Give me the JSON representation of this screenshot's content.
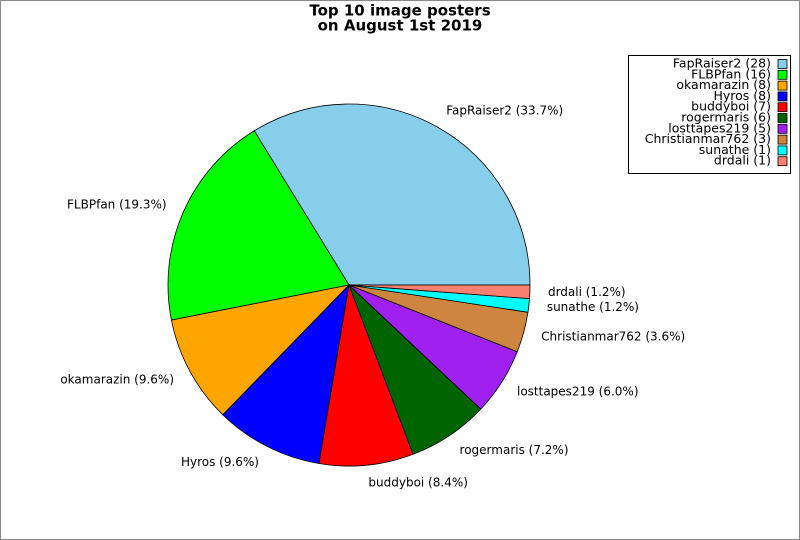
{
  "chart_data": {
    "type": "pie",
    "title": [
      "Top 10 image posters",
      "on August 1st 2019"
    ],
    "categories": [
      "FapRaiser2",
      "FLBPfan",
      "okamarazin",
      "Hyros",
      "buddyboi",
      "rogermaris",
      "losttapes219",
      "Christianmar762",
      "sunathe",
      "drdali"
    ],
    "values": [
      33.7,
      19.3,
      9.6,
      9.6,
      8.4,
      7.2,
      6.0,
      3.6,
      1.2,
      1.2
    ],
    "value_labels": [
      "FapRaiser2 (33.7%)",
      "FLBPfan (19.3%)",
      "okamarazin (9.6%)",
      "Hyros (9.6%)",
      "buddyboi (8.4%)",
      "rogermaris (7.2%)",
      "losttapes219 (6.0%)",
      "Christianmar762 (3.6%)",
      "sunathe (1.2%)",
      "drdali (1.2%)"
    ],
    "legend_labels": [
      "FapRaiser2 (28)",
      "FLBPfan (16)",
      "okamarazin (8)",
      "Hyros (8)",
      "buddyboi (7)",
      "rogermaris (6)",
      "losttapes219 (5)",
      "Christianmar762 (3)",
      "sunathe (1)",
      "drdali (1)"
    ],
    "colors": [
      "#87ceeb",
      "#00ff00",
      "#ffa500",
      "#0000ff",
      "#ff0000",
      "#006400",
      "#a020f0",
      "#cd853f",
      "#00ffff",
      "#fa8072"
    ],
    "legend": "upper right"
  }
}
